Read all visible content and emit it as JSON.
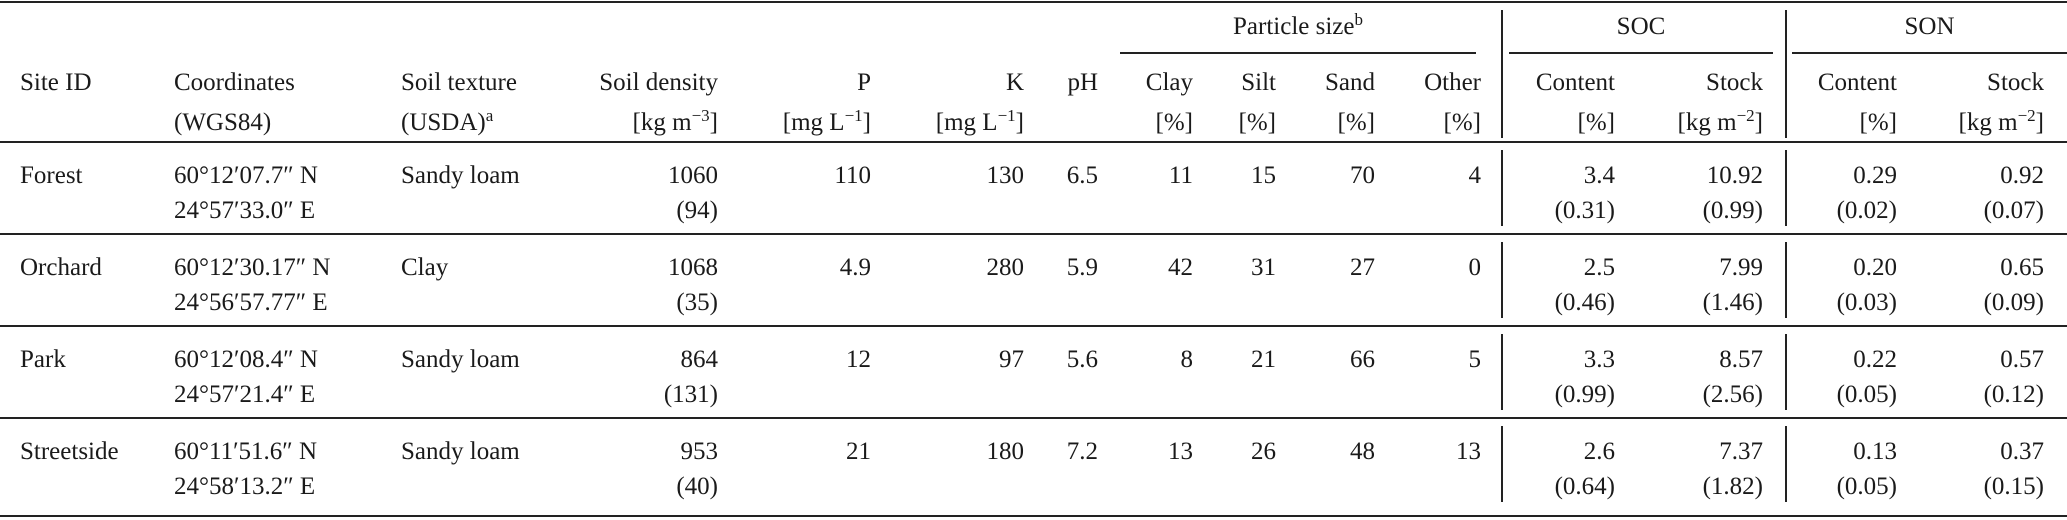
{
  "header": {
    "groups": [
      {
        "label": "Particle size",
        "sup": "b"
      },
      {
        "label": "SOC"
      },
      {
        "label": "SON"
      }
    ],
    "columns": [
      {
        "line1": "Site ID"
      },
      {
        "line1": "Coordinates",
        "line2": "(WGS84)"
      },
      {
        "line1": "Soil texture",
        "line2": "(USDA)",
        "sup": "a"
      },
      {
        "line1": "Soil density",
        "unit": "[kg m",
        "unit_sup": "−3",
        "unit_end": "]"
      },
      {
        "line1": "P",
        "unit": "[mg L",
        "unit_sup": "−1",
        "unit_end": "]"
      },
      {
        "line1": "K",
        "unit": "[mg L",
        "unit_sup": "−1",
        "unit_end": "]"
      },
      {
        "line1": "pH"
      },
      {
        "line1": "Clay",
        "line2": "[%]"
      },
      {
        "line1": "Silt",
        "line2": "[%]"
      },
      {
        "line1": "Sand",
        "line2": "[%]"
      },
      {
        "line1": "Other",
        "line2": "[%]"
      },
      {
        "line1": "Content",
        "line2": "[%]"
      },
      {
        "line1": "Stock",
        "unit": "[kg m",
        "unit_sup": "−2",
        "unit_end": "]"
      },
      {
        "line1": "Content",
        "line2": "[%]"
      },
      {
        "line1": "Stock",
        "unit": "[kg m",
        "unit_sup": "−2",
        "unit_end": "]"
      }
    ]
  },
  "table": {
    "rows": [
      {
        "site": "Forest",
        "coordinates": [
          "60°12′07.7″ N",
          "24°57′33.0″ E"
        ],
        "texture": "Sandy loam",
        "density": [
          "1060",
          "(94)"
        ],
        "p": "110",
        "k": "130",
        "ph": "6.5",
        "clay": "11",
        "silt": "15",
        "sand": "70",
        "other": "4",
        "soc_content": [
          "3.4",
          "(0.31)"
        ],
        "soc_stock": [
          "10.92",
          "(0.99)"
        ],
        "son_content": [
          "0.29",
          "(0.02)"
        ],
        "son_stock": [
          "0.92",
          "(0.07)"
        ]
      },
      {
        "site": "Orchard",
        "coordinates": [
          "60°12′30.17″ N",
          "24°56′57.77″ E"
        ],
        "texture": "Clay",
        "density": [
          "1068",
          "(35)"
        ],
        "p": "4.9",
        "k": "280",
        "ph": "5.9",
        "clay": "42",
        "silt": "31",
        "sand": "27",
        "other": "0",
        "soc_content": [
          "2.5",
          "(0.46)"
        ],
        "soc_stock": [
          "7.99",
          "(1.46)"
        ],
        "son_content": [
          "0.20",
          "(0.03)"
        ],
        "son_stock": [
          "0.65",
          "(0.09)"
        ]
      },
      {
        "site": "Park",
        "coordinates": [
          "60°12′08.4″ N",
          "24°57′21.4″ E"
        ],
        "texture": "Sandy loam",
        "density": [
          "864",
          "(131)"
        ],
        "p": "12",
        "k": "97",
        "ph": "5.6",
        "clay": "8",
        "silt": "21",
        "sand": "66",
        "other": "5",
        "soc_content": [
          "3.3",
          "(0.99)"
        ],
        "soc_stock": [
          "8.57",
          "(2.56)"
        ],
        "son_content": [
          "0.22",
          "(0.05)"
        ],
        "son_stock": [
          "0.57",
          "(0.12)"
        ]
      },
      {
        "site": "Streetside",
        "coordinates": [
          "60°11′51.6″ N",
          "24°58′13.2″ E"
        ],
        "texture": "Sandy loam",
        "density": [
          "953",
          "(40)"
        ],
        "p": "21",
        "k": "180",
        "ph": "7.2",
        "clay": "13",
        "silt": "26",
        "sand": "48",
        "other": "13",
        "soc_content": [
          "2.6",
          "(0.64)"
        ],
        "soc_stock": [
          "7.37",
          "(1.82)"
        ],
        "son_content": [
          "0.13",
          "(0.05)"
        ],
        "son_stock": [
          "0.37",
          "(0.15)"
        ]
      }
    ]
  }
}
